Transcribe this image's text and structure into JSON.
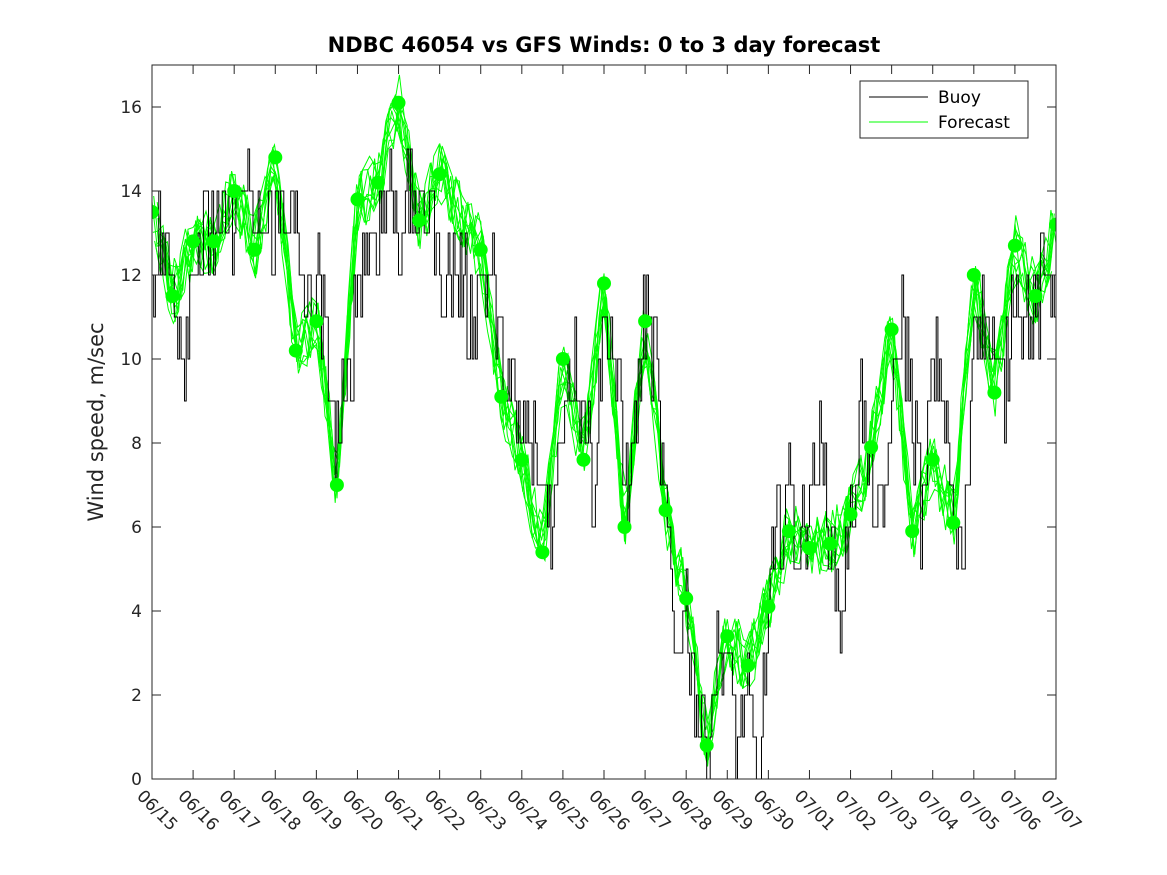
{
  "chart_data": {
    "type": "line",
    "title": "NDBC 46054 vs GFS Winds: 0 to 3 day forecast",
    "xlabel": "",
    "ylabel": "Wind speed, m/sec",
    "xlim": [
      "06/15",
      "07/07"
    ],
    "ylim": [
      0,
      17
    ],
    "x_tick_labels": [
      "06/15",
      "06/16",
      "06/17",
      "06/18",
      "06/19",
      "06/20",
      "06/21",
      "06/22",
      "06/23",
      "06/24",
      "06/25",
      "06/26",
      "06/27",
      "06/28",
      "06/29",
      "06/30",
      "07/01",
      "07/02",
      "07/03",
      "07/04",
      "07/05",
      "07/06",
      "07/07"
    ],
    "y_ticks": [
      0,
      2,
      4,
      6,
      8,
      10,
      12,
      14,
      16
    ],
    "grid": false,
    "legend": {
      "placement": "top-right",
      "entries": [
        {
          "name": "Buoy",
          "color": "#000000"
        },
        {
          "name": "Forecast",
          "color": "#00ff00"
        }
      ]
    },
    "series": [
      {
        "name": "Buoy",
        "color": "#000000",
        "x_unit": "days after 06/15",
        "points": [
          [
            0,
            12
          ],
          [
            0.25,
            13
          ],
          [
            0.5,
            12
          ],
          [
            0.75,
            10
          ],
          [
            1,
            12.5
          ],
          [
            1.25,
            13
          ],
          [
            1.5,
            13
          ],
          [
            1.75,
            13
          ],
          [
            2,
            13.5
          ],
          [
            2.25,
            14
          ],
          [
            2.5,
            13
          ],
          [
            2.75,
            13
          ],
          [
            3,
            13
          ],
          [
            3.25,
            14
          ],
          [
            3.5,
            13
          ],
          [
            3.75,
            11
          ],
          [
            4,
            12
          ],
          [
            4.25,
            10
          ],
          [
            4.5,
            8
          ],
          [
            4.75,
            9
          ],
          [
            5,
            12
          ],
          [
            5.25,
            13
          ],
          [
            5.5,
            13
          ],
          [
            5.75,
            14
          ],
          [
            6,
            13
          ],
          [
            6.25,
            14
          ],
          [
            6.5,
            13
          ],
          [
            6.75,
            14
          ],
          [
            7,
            12
          ],
          [
            7.25,
            12
          ],
          [
            7.5,
            12
          ],
          [
            7.75,
            11
          ],
          [
            8,
            12
          ],
          [
            8.25,
            12
          ],
          [
            8.5,
            10
          ],
          [
            8.75,
            9
          ],
          [
            9,
            8
          ],
          [
            9.25,
            8
          ],
          [
            9.5,
            7
          ],
          [
            9.75,
            6
          ],
          [
            10,
            9
          ],
          [
            10.25,
            10
          ],
          [
            10.5,
            9
          ],
          [
            10.75,
            7
          ],
          [
            11,
            11
          ],
          [
            11.25,
            10
          ],
          [
            11.5,
            7
          ],
          [
            11.75,
            8
          ],
          [
            12,
            11
          ],
          [
            12.25,
            10
          ],
          [
            12.5,
            6
          ],
          [
            12.75,
            3
          ],
          [
            13,
            4
          ],
          [
            13.25,
            2
          ],
          [
            13.5,
            1
          ],
          [
            13.75,
            3
          ],
          [
            14,
            3
          ],
          [
            14.25,
            1
          ],
          [
            14.5,
            2
          ],
          [
            14.75,
            0
          ],
          [
            15,
            4
          ],
          [
            15.25,
            6
          ],
          [
            15.5,
            7
          ],
          [
            15.75,
            5
          ],
          [
            16,
            7
          ],
          [
            16.25,
            8
          ],
          [
            16.5,
            6
          ],
          [
            16.75,
            4
          ],
          [
            17,
            6
          ],
          [
            17.25,
            9
          ],
          [
            17.5,
            7
          ],
          [
            17.75,
            6
          ],
          [
            18,
            9
          ],
          [
            18.25,
            11
          ],
          [
            18.5,
            9
          ],
          [
            18.75,
            6
          ],
          [
            19,
            10
          ],
          [
            19.25,
            9
          ],
          [
            19.5,
            6
          ],
          [
            19.75,
            5
          ],
          [
            20,
            11
          ],
          [
            20.25,
            11
          ],
          [
            20.5,
            10
          ],
          [
            20.75,
            9
          ],
          [
            21,
            12
          ],
          [
            21.25,
            11
          ],
          [
            21.5,
            11
          ],
          [
            21.75,
            12
          ],
          [
            22,
            12
          ]
        ]
      },
      {
        "name": "Forecast",
        "color": "#00ff00",
        "x_unit": "days after 06/15",
        "points": [
          [
            0,
            13.5
          ],
          [
            0.5,
            11.5
          ],
          [
            1,
            12.8
          ],
          [
            1.5,
            12.8
          ],
          [
            2,
            14
          ],
          [
            2.5,
            12.6
          ],
          [
            3,
            14.8
          ],
          [
            3.5,
            10.2
          ],
          [
            4,
            10.9
          ],
          [
            4.5,
            7
          ],
          [
            5,
            13.8
          ],
          [
            5.5,
            14.2
          ],
          [
            6,
            16.1
          ],
          [
            6.5,
            13.3
          ],
          [
            7,
            14.4
          ],
          [
            8,
            12.6
          ],
          [
            8.5,
            9.1
          ],
          [
            9,
            7.6
          ],
          [
            9.5,
            5.4
          ],
          [
            10,
            10
          ],
          [
            10.5,
            7.6
          ],
          [
            11,
            11.8
          ],
          [
            11.5,
            6
          ],
          [
            12,
            10.9
          ],
          [
            12.5,
            6.4
          ],
          [
            13,
            4.3
          ],
          [
            13.5,
            0.8
          ],
          [
            14,
            3.4
          ],
          [
            14.5,
            2.7
          ],
          [
            15,
            4.1
          ],
          [
            15.5,
            5.9
          ],
          [
            16,
            5.5
          ],
          [
            16.5,
            5.6
          ],
          [
            17,
            6.3
          ],
          [
            17.5,
            7.9
          ],
          [
            18,
            10.7
          ],
          [
            18.5,
            5.9
          ],
          [
            19,
            7.6
          ],
          [
            19.5,
            6.1
          ],
          [
            20,
            12
          ],
          [
            20.5,
            9.2
          ],
          [
            21,
            12.7
          ],
          [
            21.5,
            11.5
          ],
          [
            22,
            13.2
          ]
        ]
      }
    ]
  }
}
